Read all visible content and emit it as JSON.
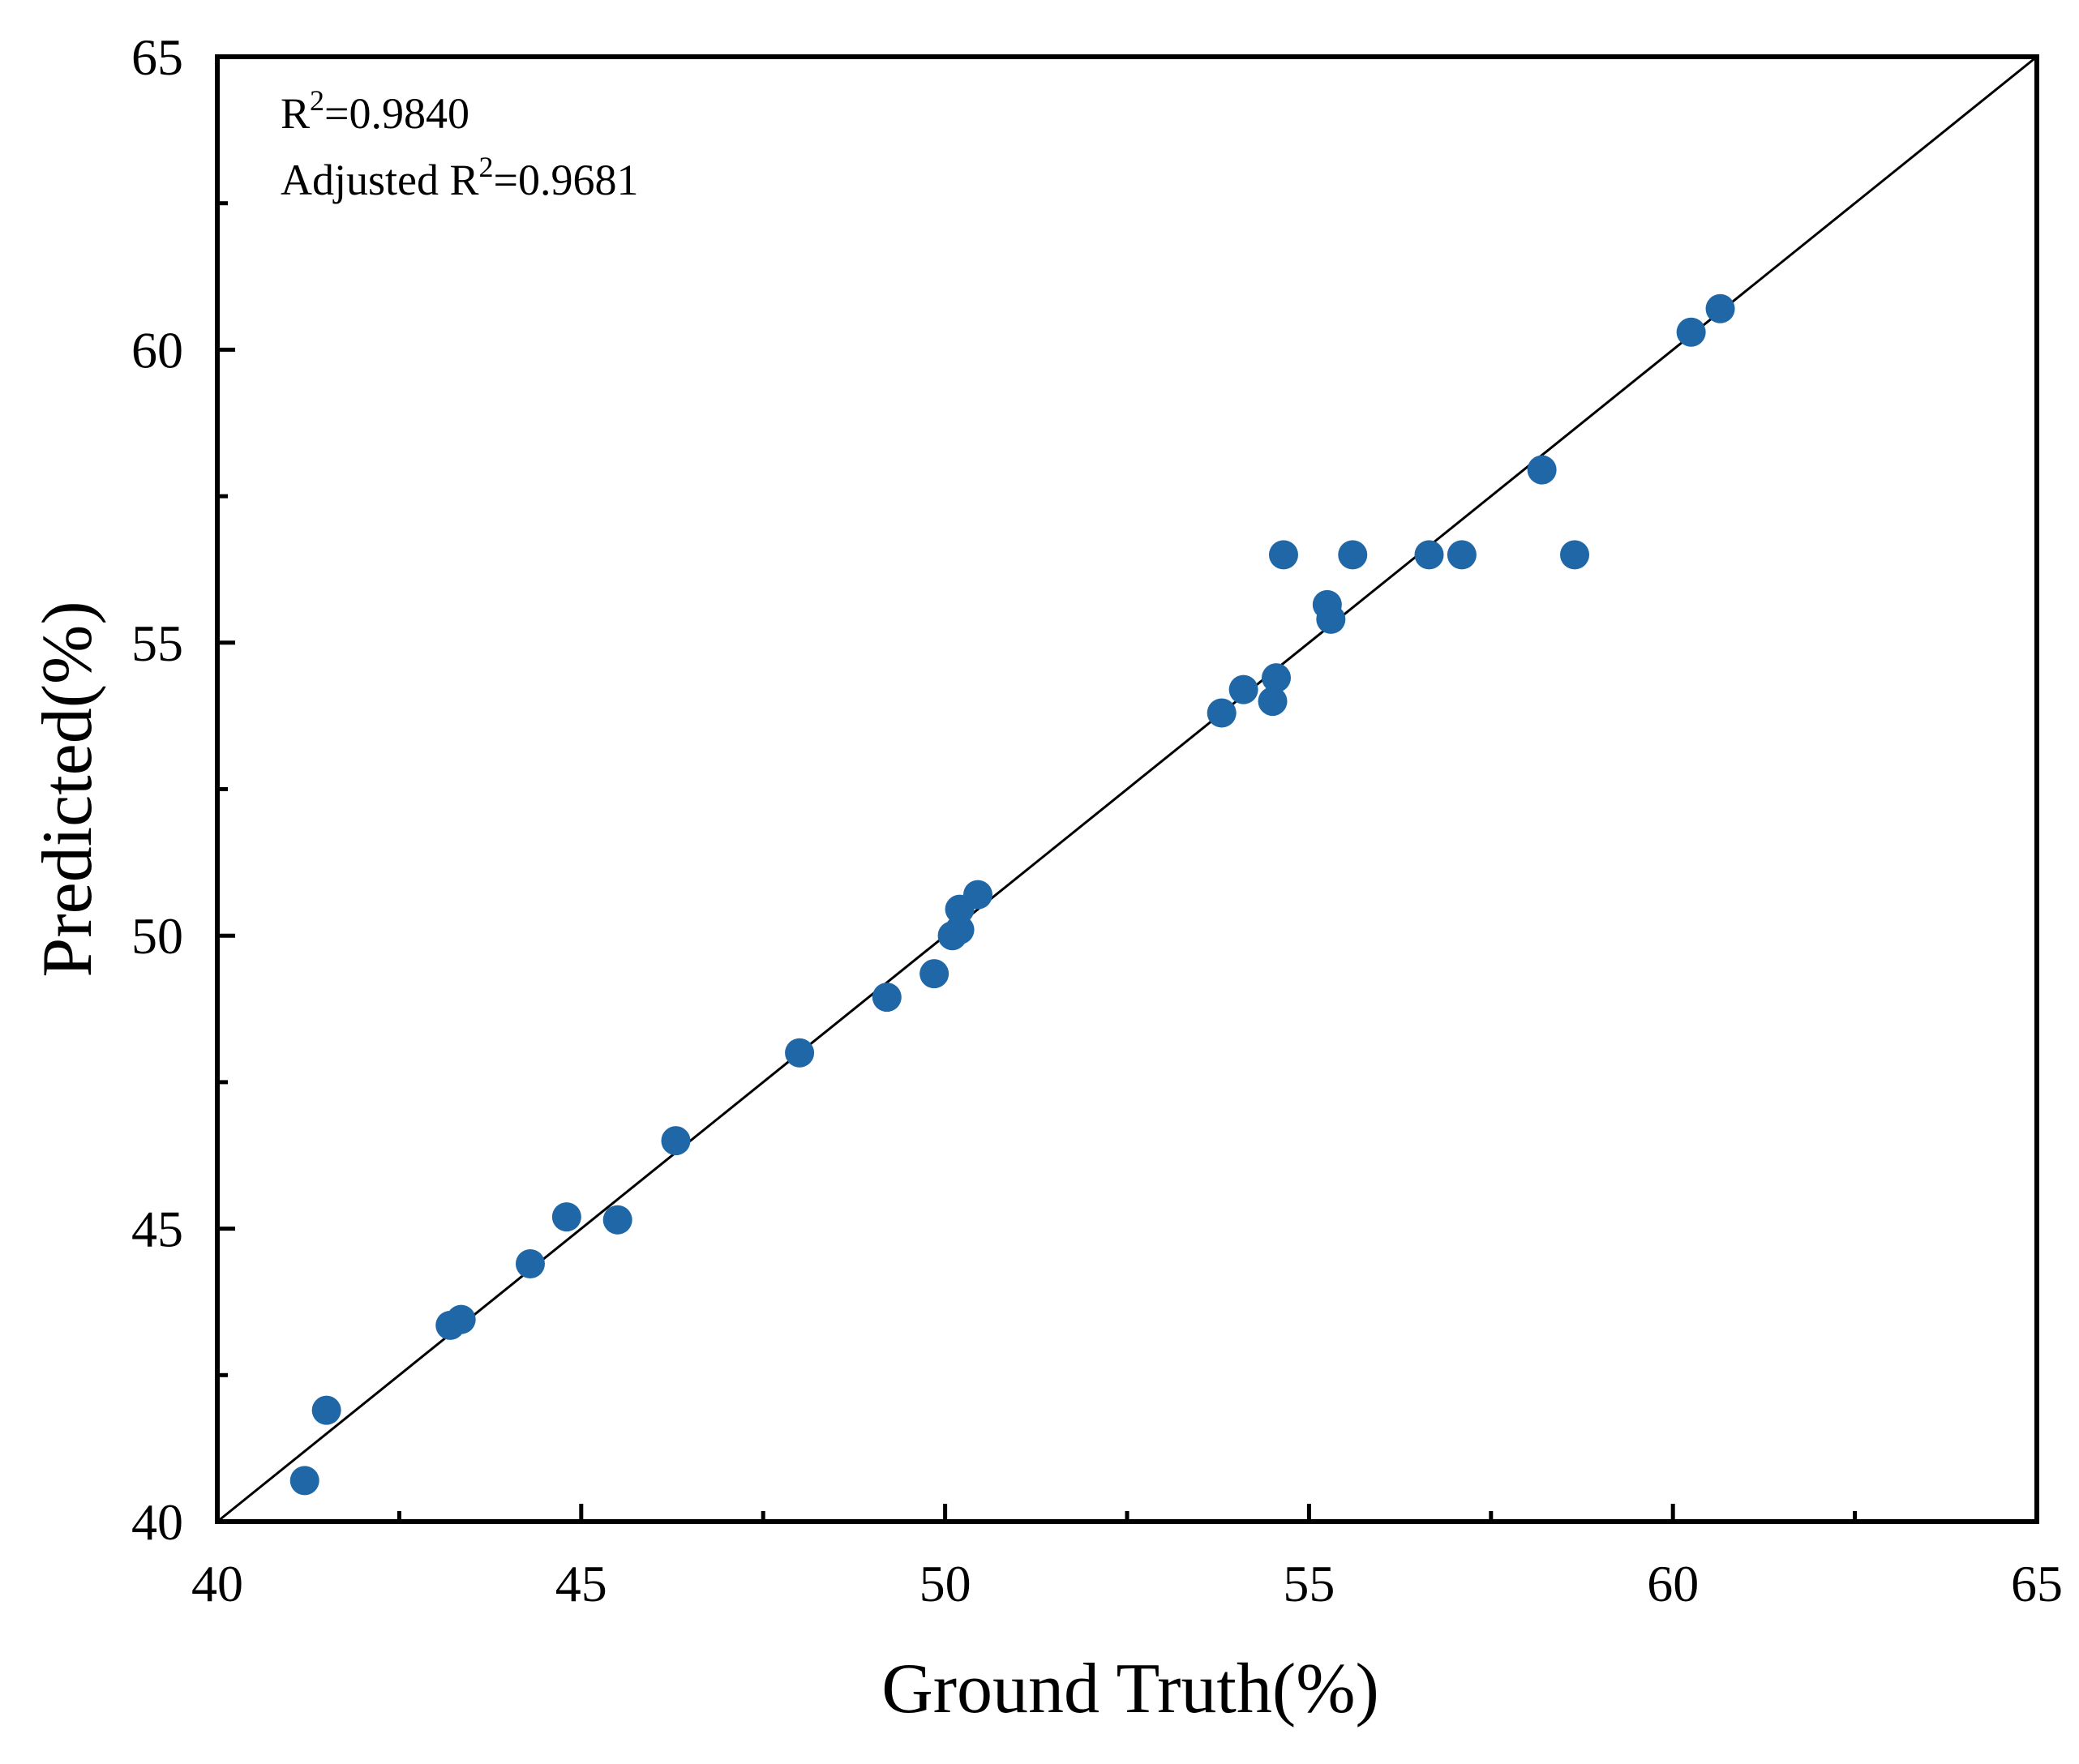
{
  "chart_data": {
    "type": "scatter",
    "xlabel": "Ground Truth(%)",
    "ylabel": "Predicted(%)",
    "xlim": [
      40,
      65
    ],
    "ylim": [
      40,
      65
    ],
    "x_ticks": [
      40,
      45,
      50,
      55,
      60,
      65
    ],
    "y_ticks": [
      40,
      45,
      50,
      55,
      60,
      65
    ],
    "minor_ticks": true,
    "grid": false,
    "legend": "none",
    "reference_line": {
      "type": "identity",
      "from": [
        40,
        40
      ],
      "to": [
        65,
        65
      ]
    },
    "annotations": [
      {
        "base": "R",
        "sup": "2",
        "rest": "=0.9840"
      },
      {
        "base": "Adjusted R",
        "sup": "2",
        "rest": "=0.9681"
      }
    ],
    "marker_color": "#1f67a7",
    "points": [
      {
        "x": 41.2,
        "y": 40.7
      },
      {
        "x": 41.5,
        "y": 41.9
      },
      {
        "x": 43.2,
        "y": 43.35
      },
      {
        "x": 43.35,
        "y": 43.45
      },
      {
        "x": 44.3,
        "y": 44.4
      },
      {
        "x": 44.8,
        "y": 45.2
      },
      {
        "x": 45.5,
        "y": 45.15
      },
      {
        "x": 46.3,
        "y": 46.5
      },
      {
        "x": 48.0,
        "y": 48.0
      },
      {
        "x": 49.2,
        "y": 48.95
      },
      {
        "x": 49.85,
        "y": 49.35
      },
      {
        "x": 50.1,
        "y": 50.0
      },
      {
        "x": 50.2,
        "y": 50.1
      },
      {
        "x": 50.2,
        "y": 50.45
      },
      {
        "x": 50.45,
        "y": 50.7
      },
      {
        "x": 53.8,
        "y": 53.8
      },
      {
        "x": 54.1,
        "y": 54.2
      },
      {
        "x": 54.5,
        "y": 54.0
      },
      {
        "x": 54.55,
        "y": 54.4
      },
      {
        "x": 54.65,
        "y": 56.5
      },
      {
        "x": 55.25,
        "y": 55.65
      },
      {
        "x": 55.3,
        "y": 55.4
      },
      {
        "x": 55.6,
        "y": 56.5
      },
      {
        "x": 56.65,
        "y": 56.5
      },
      {
        "x": 57.1,
        "y": 56.5
      },
      {
        "x": 58.2,
        "y": 57.95
      },
      {
        "x": 58.65,
        "y": 56.5
      },
      {
        "x": 60.25,
        "y": 60.3
      },
      {
        "x": 60.65,
        "y": 60.7
      }
    ]
  }
}
